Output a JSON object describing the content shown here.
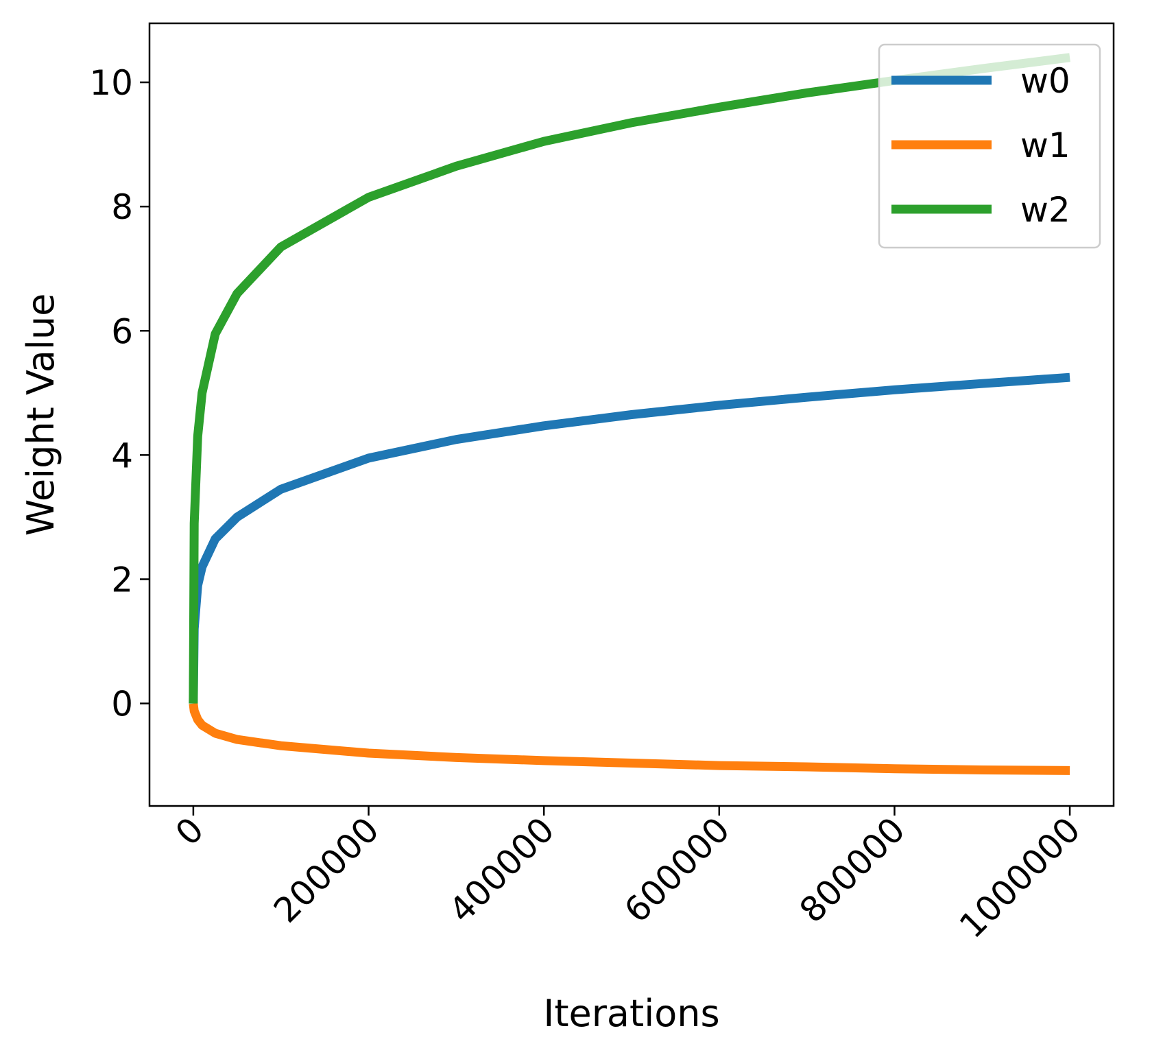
{
  "chart_data": {
    "type": "line",
    "title": "",
    "xlabel": "Iterations",
    "ylabel": "Weight Value",
    "xlim": [
      -50000,
      1050000
    ],
    "ylim": [
      -1.65,
      10.95
    ],
    "xticks": [
      0,
      200000,
      400000,
      600000,
      800000,
      1000000
    ],
    "xtick_labels": [
      "0",
      "200000",
      "400000",
      "600000",
      "800000",
      "1000000"
    ],
    "yticks": [
      0,
      2,
      4,
      6,
      8,
      10
    ],
    "ytick_labels": [
      "0",
      "2",
      "4",
      "6",
      "8",
      "10"
    ],
    "grid": false,
    "legend": {
      "placement": "top-right"
    },
    "x": [
      0,
      1000,
      5000,
      10000,
      25000,
      50000,
      100000,
      200000,
      300000,
      400000,
      500000,
      600000,
      700000,
      800000,
      900000,
      1000000
    ],
    "series": [
      {
        "name": "w0",
        "color": "#1f77b4",
        "values": [
          0,
          1.2,
          1.9,
          2.2,
          2.65,
          3.0,
          3.45,
          3.95,
          4.25,
          4.47,
          4.65,
          4.8,
          4.93,
          5.05,
          5.15,
          5.25
        ]
      },
      {
        "name": "w1",
        "color": "#ff7f0e",
        "values": [
          0,
          -0.12,
          -0.26,
          -0.35,
          -0.48,
          -0.58,
          -0.68,
          -0.8,
          -0.87,
          -0.92,
          -0.96,
          -1.0,
          -1.02,
          -1.05,
          -1.07,
          -1.08
        ]
      },
      {
        "name": "w2",
        "color": "#2ca02c",
        "values": [
          0,
          2.9,
          4.3,
          5.0,
          5.95,
          6.6,
          7.35,
          8.15,
          8.65,
          9.05,
          9.35,
          9.6,
          9.83,
          10.03,
          10.22,
          10.4
        ]
      }
    ]
  }
}
